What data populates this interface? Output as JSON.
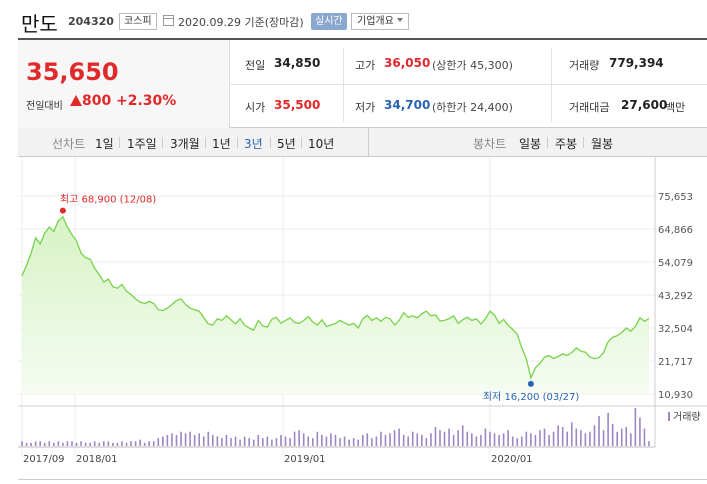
{
  "header": {
    "name": "만도",
    "code": "204320",
    "market": "코스피",
    "date": "2020.09.29  기준(장마감)",
    "realtime": "실시간",
    "company_info": "기업개요"
  },
  "quote": {
    "price": "35,650",
    "change_label": "전일대비",
    "change_value": "800",
    "change_pct": "+2.30%",
    "prev_label": "전일",
    "prev_value": "34,850",
    "open_label": "시가",
    "open_value": "35,500",
    "high_label": "고가",
    "high_value": "36,050",
    "upper_limit": "(상한가 45,300)",
    "low_label": "저가",
    "low_value": "34,700",
    "lower_limit": "(하한가 24,400)",
    "volume_label": "거래량",
    "volume_value": "779,394",
    "amount_label": "거래대금",
    "amount_value": "27,600",
    "amount_unit": "백만"
  },
  "tabs": {
    "line_chart": "선차트",
    "periods": [
      "1일",
      "1주일",
      "3개월",
      "1년",
      "3년",
      "5년",
      "10년"
    ],
    "selected": "3년",
    "candle_chart": "봉차트",
    "candle_periods": [
      "일봉",
      "주봉",
      "월봉"
    ]
  },
  "colors": {
    "up": "#e0292a",
    "down": "#2864b4",
    "line": "#77d34a",
    "area": "#e4f7d9",
    "volume": "#9d86c4"
  },
  "chart_data": {
    "type": "area",
    "y_ticks": [
      "75,653",
      "64,866",
      "54,079",
      "43,292",
      "32,504",
      "21,717",
      "10,930"
    ],
    "ylim": [
      10930,
      75653
    ],
    "x_ticks": [
      "2017/09",
      "2018/01",
      "2019/01",
      "2020/01"
    ],
    "volume_label": "거래량",
    "annotations": {
      "high": {
        "label": "최고 68,900 (12/08)",
        "value": 68900
      },
      "low": {
        "label": "최저 16,200 (03/27)",
        "value": 16200
      }
    },
    "values": [
      49500,
      53000,
      57000,
      62000,
      60000,
      63500,
      65500,
      64000,
      67500,
      68900,
      65500,
      63000,
      61000,
      57000,
      55500,
      55000,
      52000,
      50000,
      47500,
      48500,
      46000,
      45500,
      46800,
      44500,
      43500,
      42000,
      41000,
      40500,
      41200,
      40500,
      38500,
      38200,
      39000,
      40200,
      41500,
      42000,
      40200,
      39000,
      38500,
      38000,
      36000,
      33800,
      33500,
      35500,
      35000,
      36500,
      35200,
      33800,
      35500,
      33500,
      32500,
      31800,
      35000,
      33200,
      32800,
      35400,
      36000,
      34000,
      35000,
      35800,
      34300,
      34000,
      35000,
      36200,
      34500,
      33500,
      35200,
      33000,
      33500,
      34000,
      35000,
      34200,
      33500,
      34000,
      32500,
      35500,
      36600,
      35000,
      35800,
      34700,
      36000,
      35500,
      33500,
      35000,
      37500,
      36000,
      36500,
      35800,
      37200,
      38000,
      36500,
      36800,
      34800,
      35000,
      35500,
      36500,
      34000,
      35200,
      36000,
      35000,
      35500,
      33800,
      35500,
      38000,
      36800,
      34000,
      35300,
      33400,
      32000,
      30500,
      26000,
      22500,
      16200,
      19500,
      21000,
      23000,
      23500,
      22500,
      23200,
      24000,
      23500,
      24500,
      26000,
      25000,
      24600,
      23000,
      22500,
      22800,
      24500,
      28000,
      29500,
      30000,
      31000,
      32500,
      31500,
      33000,
      35800,
      34700,
      35650
    ],
    "volumes": [
      3,
      2,
      2,
      3,
      3,
      2,
      3,
      2,
      3,
      2,
      3,
      3,
      2,
      3,
      2,
      2,
      3,
      2,
      3,
      3,
      2,
      2,
      3,
      2,
      3,
      3,
      4,
      2,
      3,
      3,
      5,
      6,
      7,
      8,
      7,
      9,
      8,
      9,
      7,
      8,
      6,
      9,
      7,
      6,
      5,
      7,
      5,
      6,
      4,
      6,
      5,
      4,
      7,
      5,
      6,
      4,
      5,
      7,
      6,
      5,
      9,
      10,
      8,
      6,
      5,
      9,
      7,
      6,
      8,
      7,
      5,
      6,
      4,
      5,
      4,
      7,
      8,
      5,
      6,
      9,
      7,
      8,
      10,
      11,
      7,
      6,
      9,
      8,
      7,
      5,
      8,
      12,
      10,
      9,
      11,
      7,
      10,
      13,
      9,
      8,
      6,
      7,
      11,
      9,
      8,
      7,
      8,
      10,
      6,
      5,
      6,
      9,
      8,
      7,
      10,
      11,
      7,
      9,
      13,
      12,
      9,
      15,
      11,
      10,
      8,
      9,
      13,
      19,
      10,
      21,
      14,
      9,
      11,
      12,
      8,
      24,
      18,
      11,
      3
    ]
  }
}
